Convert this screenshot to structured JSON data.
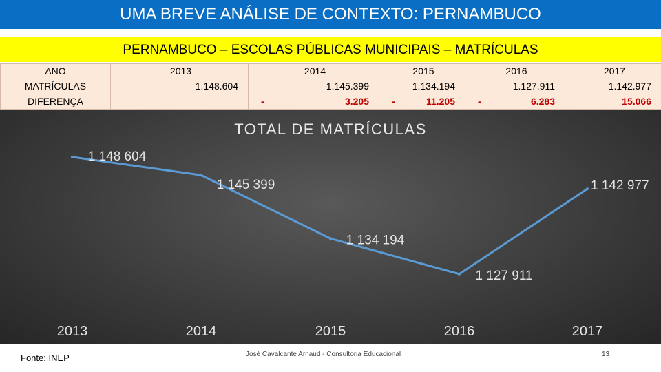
{
  "header": {
    "title": "UMA BREVE ANÁLISE DE CONTEXTO: PERNAMBUCO"
  },
  "subtitle": "PERNAMBUCO – ESCOLAS PÚBLICAS MUNICIPAIS – MATRÍCULAS",
  "table": {
    "row_labels": [
      "ANO",
      "MATRÍCULAS",
      "DIFERENÇA"
    ],
    "columns": [
      {
        "year": "2013",
        "matriculas": "1.148.604",
        "diferenca": "",
        "sign": ""
      },
      {
        "year": "2014",
        "matriculas": "1.145.399",
        "diferenca": "3.205",
        "sign": "-"
      },
      {
        "year": "2015",
        "matriculas": "1.134.194",
        "diferenca": "11.205",
        "sign": "-"
      },
      {
        "year": "2016",
        "matriculas": "1.127.911",
        "diferenca": "6.283",
        "sign": "-"
      },
      {
        "year": "2017",
        "matriculas": "1.142.977",
        "diferenca": "15.066",
        "sign": ""
      }
    ]
  },
  "chart_data": {
    "type": "line",
    "title": "TOTAL DE MATRÍCULAS",
    "categories": [
      "2013",
      "2014",
      "2015",
      "2016",
      "2017"
    ],
    "values": [
      1148604,
      1145399,
      1134194,
      1127911,
      1142977
    ],
    "data_labels": [
      "1 148 604",
      "1 145 399",
      "1 134 194",
      "1 127 911",
      "1 142 977"
    ],
    "ylim": [
      1124000,
      1152000
    ],
    "grid": false,
    "legend": "none",
    "line_color": "#5b9bd5"
  },
  "footer": {
    "source": "Fonte: INEP",
    "author": "José Cavalcante Arnaud - Consultoria Educacional",
    "page": "13"
  }
}
